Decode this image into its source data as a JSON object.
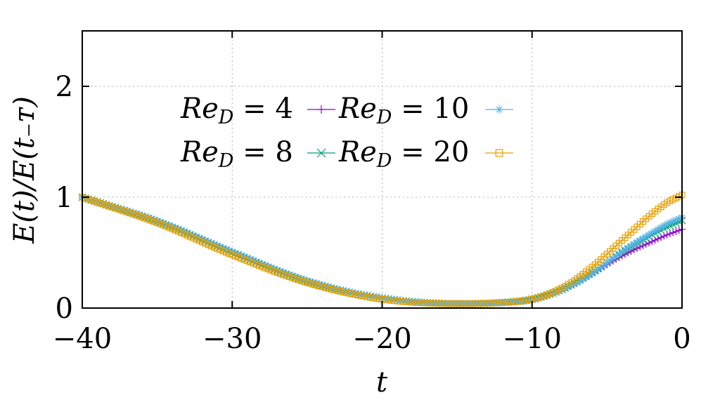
{
  "chart_data": {
    "type": "line",
    "xlabel": "t",
    "ylabel": "E(t)/E(t₋ᴛ)",
    "xlim": [
      -40,
      0
    ],
    "ylim": [
      0,
      2.5
    ],
    "x_ticks": [
      "−40",
      "−30",
      "−20",
      "−10",
      "0"
    ],
    "y_ticks": [
      "0",
      "1",
      "2"
    ],
    "grid": true,
    "legend_position": "upper-left",
    "series": [
      {
        "name": "Re_D = 4",
        "label_main": "Re",
        "label_sub": "D",
        "label_rest": " = 4",
        "marker": "plus",
        "color": "#9400d3",
        "points": [
          [
            -40,
            1.0
          ],
          [
            -35,
            0.78
          ],
          [
            -30,
            0.5
          ],
          [
            -25,
            0.24
          ],
          [
            -20,
            0.09
          ],
          [
            -15,
            0.04
          ],
          [
            -12,
            0.05
          ],
          [
            -10,
            0.08
          ],
          [
            -8,
            0.17
          ],
          [
            -6,
            0.31
          ],
          [
            -4,
            0.47
          ],
          [
            -2,
            0.6
          ],
          [
            -1,
            0.66
          ],
          [
            0,
            0.71
          ]
        ]
      },
      {
        "name": "Re_D = 8",
        "label_main": "Re",
        "label_sub": "D",
        "label_rest": " = 8",
        "marker": "cross",
        "color": "#009e73",
        "points": [
          [
            -40,
            1.0
          ],
          [
            -35,
            0.78
          ],
          [
            -30,
            0.5
          ],
          [
            -25,
            0.24
          ],
          [
            -20,
            0.09
          ],
          [
            -15,
            0.04
          ],
          [
            -12,
            0.05
          ],
          [
            -10,
            0.08
          ],
          [
            -8,
            0.17
          ],
          [
            -6,
            0.32
          ],
          [
            -4,
            0.5
          ],
          [
            -2,
            0.66
          ],
          [
            -1,
            0.73
          ],
          [
            0,
            0.79
          ]
        ]
      },
      {
        "name": "Re_D = 10",
        "label_main": "Re",
        "label_sub": "D",
        "label_rest": " = 10",
        "marker": "star",
        "color": "#56b4e9",
        "points": [
          [
            -40,
            1.0
          ],
          [
            -35,
            0.79
          ],
          [
            -30,
            0.51
          ],
          [
            -25,
            0.25
          ],
          [
            -20,
            0.09
          ],
          [
            -15,
            0.04
          ],
          [
            -12,
            0.05
          ],
          [
            -10,
            0.07
          ],
          [
            -8,
            0.16
          ],
          [
            -6,
            0.31
          ],
          [
            -4,
            0.51
          ],
          [
            -2,
            0.68
          ],
          [
            -1,
            0.76
          ],
          [
            0,
            0.82
          ]
        ]
      },
      {
        "name": "Re_D = 20",
        "label_main": "Re",
        "label_sub": "D",
        "label_rest": " = 20",
        "marker": "square",
        "color": "#e69f00",
        "points": [
          [
            -40,
            1.0
          ],
          [
            -35,
            0.77
          ],
          [
            -30,
            0.48
          ],
          [
            -25,
            0.23
          ],
          [
            -20,
            0.08
          ],
          [
            -15,
            0.04
          ],
          [
            -12,
            0.05
          ],
          [
            -10,
            0.08
          ],
          [
            -8,
            0.18
          ],
          [
            -6,
            0.37
          ],
          [
            -4,
            0.61
          ],
          [
            -2,
            0.85
          ],
          [
            -1,
            0.95
          ],
          [
            0,
            1.02
          ]
        ]
      }
    ]
  }
}
